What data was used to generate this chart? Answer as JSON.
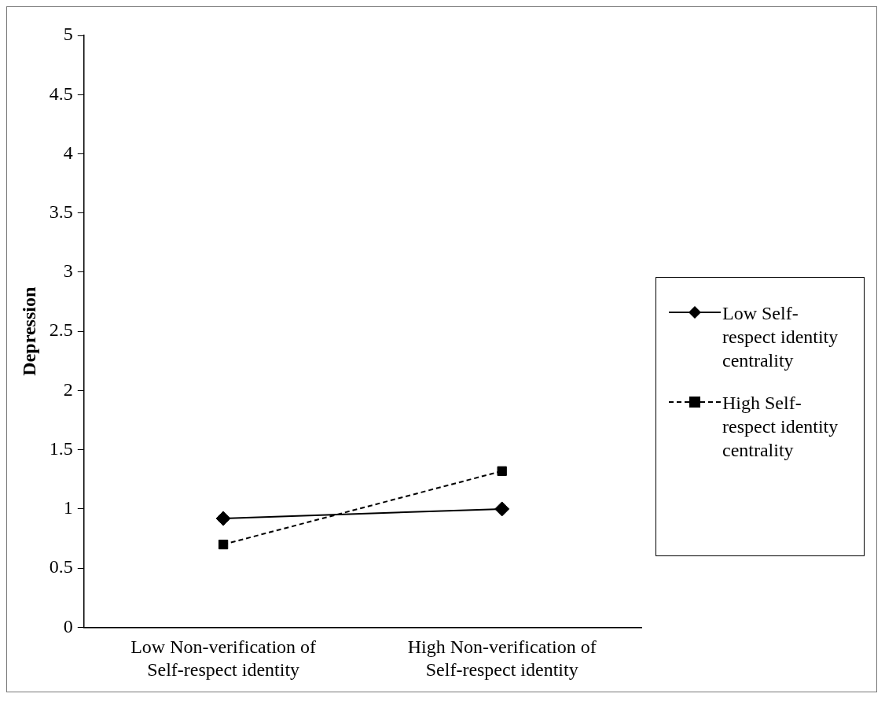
{
  "chart_data": {
    "type": "line",
    "ylabel": "Depression",
    "categories": [
      "Low Non-verification of Self-respect identity",
      "High Non-verification of Self-respect identity"
    ],
    "ylim": [
      0,
      5
    ],
    "yticks": [
      0,
      0.5,
      1,
      1.5,
      2,
      2.5,
      3,
      3.5,
      4,
      4.5,
      5
    ],
    "grid": false,
    "legend": "right",
    "series": [
      {
        "name": "Low Self-respect identity centrality",
        "color": "#000000",
        "values": [
          0.92,
          1.0
        ],
        "marker": "diamond",
        "line_style": "solid"
      },
      {
        "name": "High Self-respect identity centrality",
        "color": "#000000",
        "values": [
          0.7,
          1.32
        ],
        "marker": "square",
        "line_style": "dashed"
      }
    ]
  }
}
